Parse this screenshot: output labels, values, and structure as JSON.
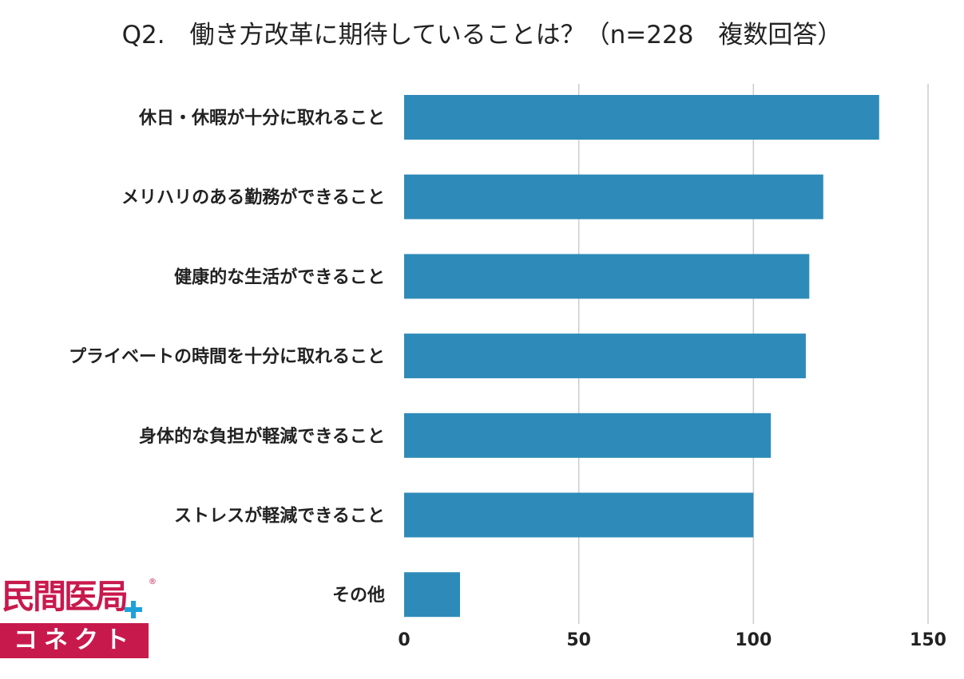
{
  "title": "Q2.　働き方改革に期待していることは？（n=228　複数回答）",
  "chart_data": {
    "type": "bar",
    "orientation": "horizontal",
    "categories": [
      "休日・休暇が十分に取れること",
      "メリハリのある勤務ができること",
      "健康的な生活ができること",
      "プライベートの時間を十分に取れること",
      "身体的な負担が軽減できること",
      "ストレスが軽減できること",
      "その他"
    ],
    "values": [
      136,
      120,
      116,
      115,
      105,
      100,
      16
    ],
    "xlim": [
      0,
      150
    ],
    "xticks": [
      0,
      50,
      100,
      150
    ],
    "grid": true,
    "bar_color": "#2e8bb9",
    "grid_color": "#cccccc"
  },
  "logo": {
    "top_text": "民間医局",
    "registered": "®",
    "bottom_text": "コネクト",
    "primary_color": "#c8194d",
    "accent_color": "#1ea1d9"
  }
}
